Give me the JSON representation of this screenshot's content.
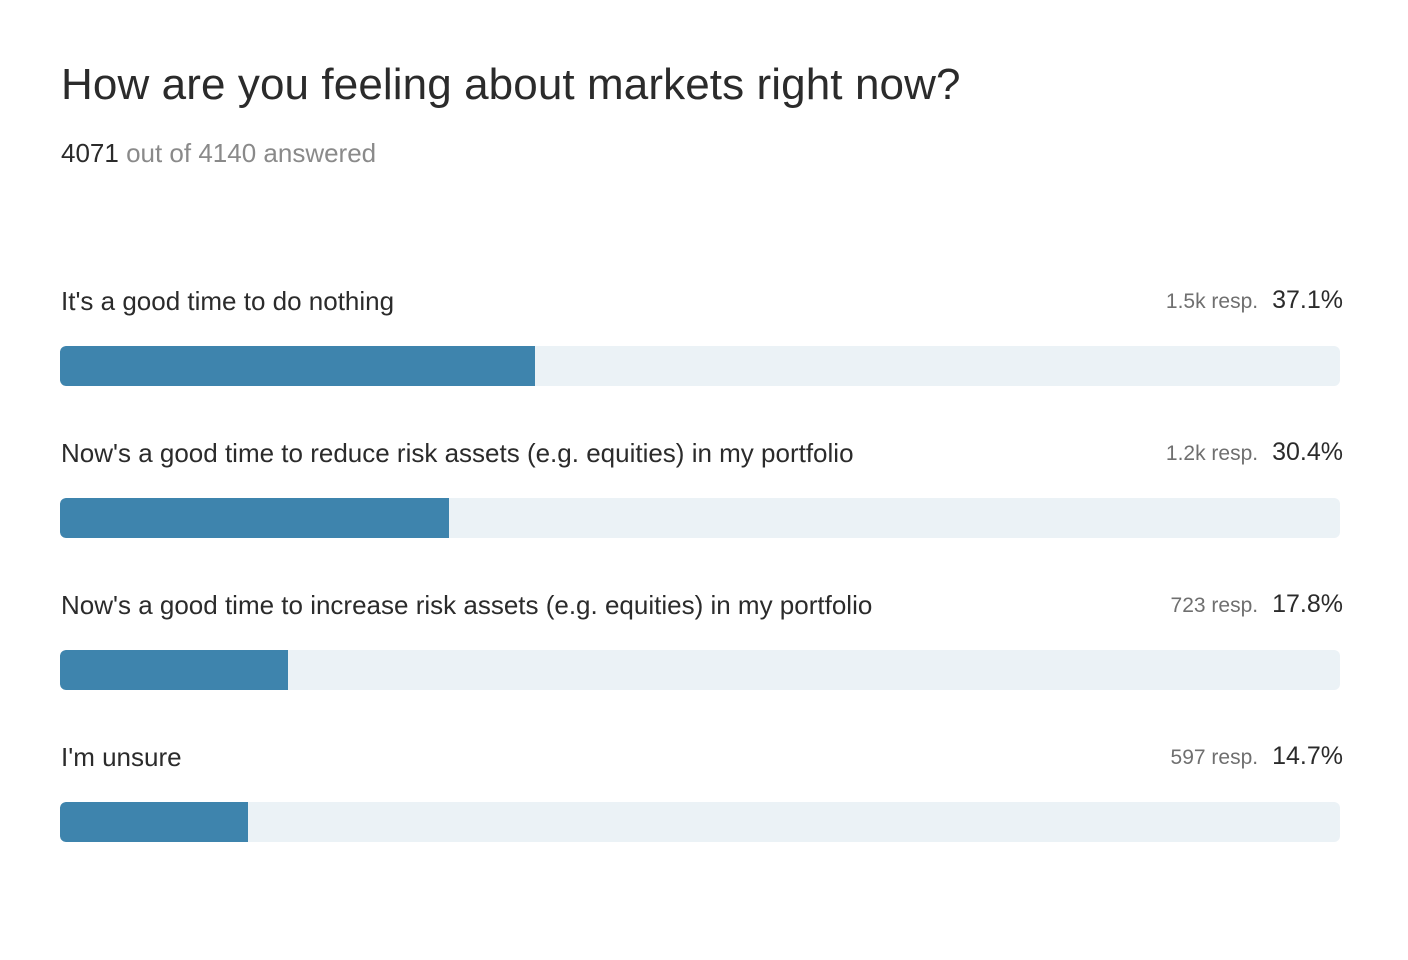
{
  "poll": {
    "title": "How are you feeling about markets right now?",
    "answered_count": "4071",
    "answered_rest": " out of 4140 answered"
  },
  "colors": {
    "bar_fill": "#3e84ad",
    "bar_track": "#ebf2f6"
  },
  "chart_data": {
    "type": "bar",
    "title": "How are you feeling about markets right now?",
    "categories": [
      "It's a good time to do nothing",
      "Now's a good time to reduce risk assets (e.g. equities) in my portfolio",
      "Now's a good time to increase risk assets (e.g. equities) in my portfolio",
      "I'm unsure"
    ],
    "responses": [
      "1.5k resp.",
      "1.2k resp.",
      "723 resp.",
      "597 resp."
    ],
    "percent_labels": [
      "37.1%",
      "30.4%",
      "17.8%",
      "14.7%"
    ],
    "values": [
      37.1,
      30.4,
      17.8,
      14.7
    ],
    "xlim": [
      0,
      100
    ],
    "orientation": "horizontal"
  }
}
